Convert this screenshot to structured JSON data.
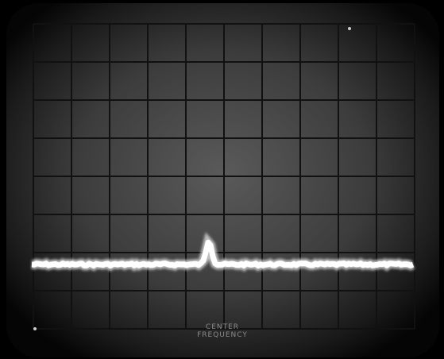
{
  "screen": {
    "marker_labels": [
      "CENTER",
      "FREQUENCY"
    ]
  }
}
